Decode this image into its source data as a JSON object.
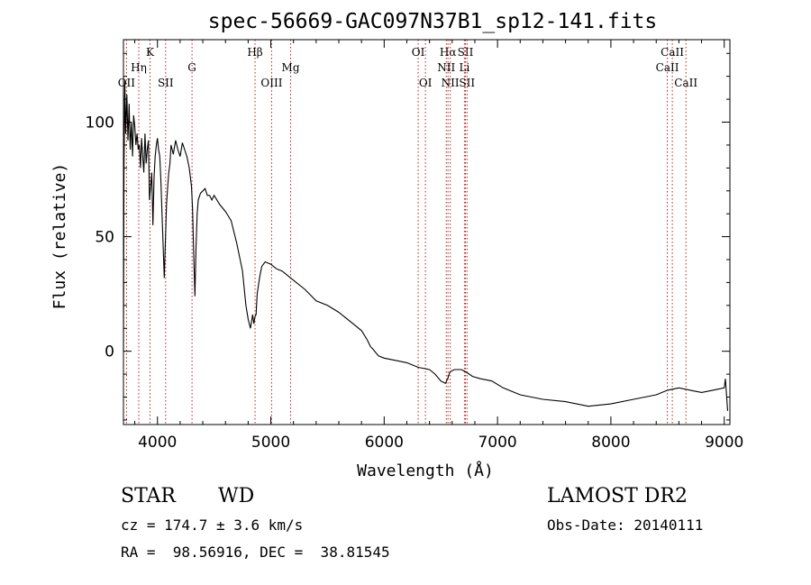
{
  "chart_data": {
    "type": "line",
    "title": "spec-56669-GAC097N37B1_sp12-141.fits",
    "xlabel": "Wavelength (Å)",
    "ylabel": "Flux (relative)",
    "xlim": [
      3700,
      9050
    ],
    "ylim": [
      -32,
      136
    ],
    "xticks": [
      4000,
      5000,
      6000,
      7000,
      8000,
      9000
    ],
    "yticks": [
      0,
      50,
      100
    ],
    "grid": false,
    "series": [
      {
        "x": [
          3700,
          3705,
          3712,
          3720,
          3730,
          3740,
          3750,
          3760,
          3770,
          3780,
          3790,
          3800,
          3810,
          3820,
          3830,
          3840,
          3850,
          3860,
          3870,
          3880,
          3890,
          3900,
          3910,
          3920,
          3930,
          3940,
          3950,
          3960,
          3970,
          3980,
          3990,
          4000,
          4010,
          4020,
          4030,
          4040,
          4060,
          4080,
          4090,
          4100,
          4110,
          4120,
          4140,
          4160,
          4180,
          4200,
          4220,
          4240,
          4260,
          4280,
          4300,
          4310,
          4320,
          4330,
          4340,
          4350,
          4360,
          4380,
          4400,
          4420,
          4440,
          4460,
          4480,
          4500,
          4550,
          4600,
          4650,
          4700,
          4750,
          4780,
          4800,
          4820,
          4840,
          4850,
          4860,
          4870,
          4880,
          4900,
          4920,
          4950,
          5000,
          5050,
          5100,
          5150,
          5200,
          5300,
          5400,
          5500,
          5600,
          5700,
          5800,
          5850,
          5880,
          5900,
          5950,
          6000,
          6100,
          6200,
          6300,
          6400,
          6450,
          6500,
          6540,
          6560,
          6580,
          6620,
          6680,
          6720,
          6780,
          6850,
          6950,
          7050,
          7200,
          7400,
          7600,
          7800,
          8000,
          8200,
          8400,
          8500,
          8600,
          8700,
          8800,
          8900,
          9000,
          9010,
          9030
        ],
        "y": [
          0,
          80,
          118,
          95,
          112,
          92,
          108,
          88,
          100,
          85,
          103,
          98,
          90,
          95,
          88,
          90,
          80,
          93,
          85,
          78,
          95,
          82,
          88,
          92,
          66,
          72,
          78,
          55,
          76,
          85,
          90,
          93,
          88,
          85,
          75,
          60,
          32,
          64,
          72,
          78,
          82,
          90,
          86,
          92,
          88,
          85,
          91,
          88,
          85,
          80,
          72,
          62,
          42,
          24,
          45,
          60,
          66,
          69,
          70,
          71,
          68,
          68,
          66,
          68,
          64,
          61,
          57,
          47,
          35,
          20,
          14,
          10,
          16,
          12,
          15,
          16,
          25,
          32,
          37,
          39,
          38,
          36,
          35,
          33,
          31,
          27,
          22,
          20,
          17,
          13,
          9,
          5,
          2,
          1,
          -2,
          -3,
          -4,
          -5,
          -7,
          -8,
          -10,
          -13,
          -14,
          -12,
          -9,
          -8,
          -8,
          -9,
          -11,
          -12,
          -13,
          -16,
          -19,
          -21,
          -22,
          -24,
          -23,
          -21,
          -19,
          -17,
          -16,
          -17,
          -18,
          -17,
          -16,
          -12,
          -26
        ]
      }
    ],
    "line_markers": [
      {
        "label": "OII",
        "wavelength": 3727,
        "row": 3
      },
      {
        "label": "Hη",
        "wavelength": 3835,
        "row": 2
      },
      {
        "label": "K",
        "wavelength": 3934,
        "row": 1
      },
      {
        "label": "SII",
        "wavelength": 4072,
        "row": 3
      },
      {
        "label": "G",
        "wavelength": 4305,
        "row": 2
      },
      {
        "label": "Hβ",
        "wavelength": 4861,
        "row": 1
      },
      {
        "label": "OIII",
        "wavelength": 5007,
        "row": 3
      },
      {
        "label": "Mg",
        "wavelength": 5175,
        "row": 2
      },
      {
        "label": "OI",
        "wavelength": 6300,
        "row": 1
      },
      {
        "label": "OI",
        "wavelength": 6364,
        "row": 3
      },
      {
        "label": "Hα",
        "wavelength": 6563,
        "row": 1
      },
      {
        "label": "NII",
        "wavelength": 6548,
        "row": 2
      },
      {
        "label": "NII",
        "wavelength": 6583,
        "row": 3
      },
      {
        "label": "SII",
        "wavelength": 6717,
        "row": 1
      },
      {
        "label": "Li",
        "wavelength": 6708,
        "row": 2
      },
      {
        "label": "SII",
        "wavelength": 6731,
        "row": 3
      },
      {
        "label": "CaII",
        "wavelength": 8542,
        "row": 1
      },
      {
        "label": "CaII",
        "wavelength": 8498,
        "row": 2
      },
      {
        "label": "CaII",
        "wavelength": 8662,
        "row": 3
      }
    ]
  },
  "info": {
    "class": "STAR",
    "subclass": "WD",
    "survey": "LAMOST DR2",
    "cz": "cz = 174.7 ± 3.6 km/s",
    "obs_date": "Obs-Date: 20140111",
    "coords": "RA =  98.56916, DEC =  38.81545"
  }
}
